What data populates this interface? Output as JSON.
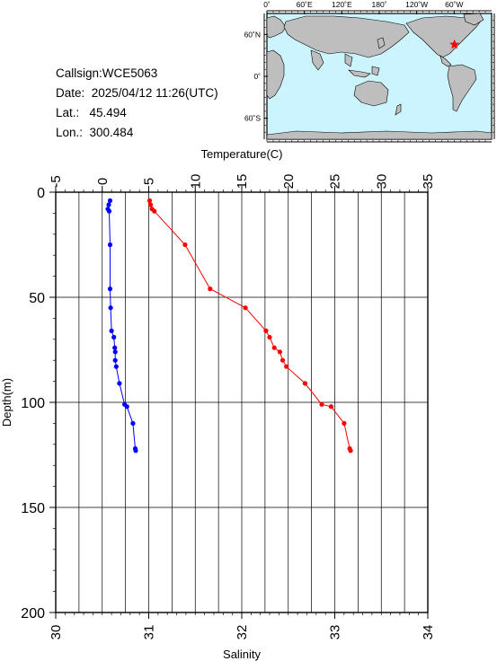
{
  "info": {
    "callsign": "Callsign:WCE5063",
    "date": "Date:  2025/04/12 11:26(UTC)",
    "lat": "Lat.:   45.494",
    "lon": "Lon.:  300.484"
  },
  "map": {
    "top_ticks": [
      "0˚",
      "60˚E",
      "120˚E",
      "180˚",
      "120˚W",
      "60˚W"
    ],
    "left_ticks": [
      "60˚N",
      "0˚",
      "60˚S"
    ],
    "ocean_color": "#ccf4ff",
    "land_color": "#bebebe",
    "marker_color": "#ff0000",
    "station_lon": 300.484,
    "station_lat": 45.494
  },
  "chart_data": {
    "type": "line",
    "top_axis_label": "Temperature(C)",
    "bottom_axis_label": "Salinity",
    "ylabel": "Depth(m)",
    "temperature_ticks": [
      "-5",
      "0",
      "5",
      "10",
      "15",
      "20",
      "25",
      "30",
      "35"
    ],
    "salinity_ticks": [
      "30",
      "31",
      "32",
      "33",
      "34"
    ],
    "depth_ticks": [
      "0",
      "50",
      "100",
      "150",
      "200"
    ],
    "temperature_range": [
      -5,
      35
    ],
    "salinity_range": [
      30,
      34
    ],
    "depth_range": [
      0,
      200
    ],
    "series": [
      {
        "axis": "salinity",
        "color": "#0000ff",
        "points": [
          [
            30.585,
            4
          ],
          [
            30.57,
            6
          ],
          [
            30.56,
            8
          ],
          [
            30.575,
            9
          ],
          [
            30.585,
            25
          ],
          [
            30.585,
            46
          ],
          [
            30.59,
            55
          ],
          [
            30.6,
            66
          ],
          [
            30.625,
            69
          ],
          [
            30.635,
            74
          ],
          [
            30.64,
            76
          ],
          [
            30.64,
            80
          ],
          [
            30.65,
            83
          ],
          [
            30.685,
            91
          ],
          [
            30.74,
            101
          ],
          [
            30.765,
            102
          ],
          [
            30.83,
            110
          ],
          [
            30.855,
            122
          ],
          [
            30.86,
            123
          ]
        ]
      },
      {
        "axis": "temperature",
        "color": "#ff0000",
        "points": [
          [
            5.1,
            4
          ],
          [
            5.2,
            6
          ],
          [
            5.35,
            8
          ],
          [
            5.6,
            9
          ],
          [
            8.9,
            25
          ],
          [
            11.6,
            46
          ],
          [
            15.4,
            55
          ],
          [
            17.6,
            66
          ],
          [
            18.0,
            69
          ],
          [
            18.5,
            74
          ],
          [
            19.1,
            76
          ],
          [
            19.4,
            80
          ],
          [
            19.8,
            83
          ],
          [
            21.8,
            91
          ],
          [
            23.6,
            101
          ],
          [
            24.6,
            102
          ],
          [
            26.0,
            110
          ],
          [
            26.6,
            122
          ],
          [
            26.7,
            123
          ]
        ]
      }
    ]
  }
}
